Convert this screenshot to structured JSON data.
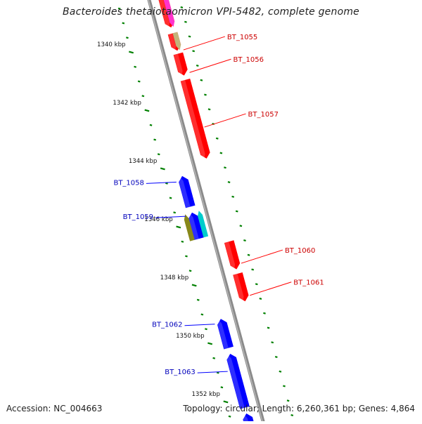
{
  "title": "Bacteroides thetaiotaomicron VPI-5482, complete genome",
  "accession": "Accession: NC_004663",
  "topology": "Topology: circular; Length: 6,260,361 bp; Genes: 4,864",
  "colors": {
    "forward": "#ff0000",
    "reverse": "#0000ff",
    "backbone": "#8a8a8a",
    "tick": "#008000",
    "forward_label": "#cc0000",
    "reverse_label": "#0000bb"
  },
  "ruler": [
    {
      "kbp": 1340,
      "label": "1340 kbp"
    },
    {
      "kbp": 1342,
      "label": "1342 kbp"
    },
    {
      "kbp": 1344,
      "label": "1344 kbp"
    },
    {
      "kbp": 1346,
      "label": "1346 kbp"
    },
    {
      "kbp": 1348,
      "label": "1348 kbp"
    },
    {
      "kbp": 1350,
      "label": "1350 kbp"
    },
    {
      "kbp": 1352,
      "label": "1352 kbp"
    }
  ],
  "genes": [
    {
      "name": "",
      "strand": "+",
      "start_kbp": 1338.2,
      "end_kbp": 1339.55,
      "color": "#ff0000"
    },
    {
      "name": "",
      "strand": "+",
      "start_kbp": 1338.2,
      "end_kbp": 1339.55,
      "color": "#ff33cc",
      "track": "inner"
    },
    {
      "name": "BT_1055",
      "strand": "+",
      "start_kbp": 1339.75,
      "end_kbp": 1340.35,
      "color": "#ff0000"
    },
    {
      "name": "",
      "strand": "+",
      "start_kbp": 1339.75,
      "end_kbp": 1340.35,
      "color": "#c2b47a",
      "track": "inner"
    },
    {
      "name": "BT_1056",
      "strand": "+",
      "start_kbp": 1340.45,
      "end_kbp": 1341.2,
      "color": "#ff0000"
    },
    {
      "name": "BT_1057",
      "strand": "+",
      "start_kbp": 1341.35,
      "end_kbp": 1344.05,
      "color": "#ff0000"
    },
    {
      "name": "BT_1058",
      "strand": "-",
      "start_kbp": 1344.4,
      "end_kbp": 1345.45,
      "color": "#0000ff"
    },
    {
      "name": "BT_1059",
      "strand": "-",
      "start_kbp": 1345.65,
      "end_kbp": 1346.55,
      "color": "#0000ff"
    },
    {
      "name": "",
      "strand": "-",
      "start_kbp": 1345.65,
      "end_kbp": 1346.55,
      "color": "#00cccc",
      "track": "inner"
    },
    {
      "name": "",
      "strand": "-",
      "start_kbp": 1345.65,
      "end_kbp": 1346.55,
      "color": "#88881a",
      "track": "outer"
    },
    {
      "name": "BT_1060",
      "strand": "+",
      "start_kbp": 1346.9,
      "end_kbp": 1347.85,
      "color": "#ff0000"
    },
    {
      "name": "BT_1061",
      "strand": "+",
      "start_kbp": 1348.0,
      "end_kbp": 1348.95,
      "color": "#ff0000"
    },
    {
      "name": "BT_1062",
      "strand": "-",
      "start_kbp": 1349.3,
      "end_kbp": 1350.3,
      "color": "#0000ff"
    },
    {
      "name": "BT_1063",
      "strand": "-",
      "start_kbp": 1350.5,
      "end_kbp": 1352.35,
      "color": "#0000ff"
    },
    {
      "name": "",
      "strand": "-",
      "start_kbp": 1352.55,
      "end_kbp": 1353.2,
      "color": "#0000ff"
    }
  ]
}
